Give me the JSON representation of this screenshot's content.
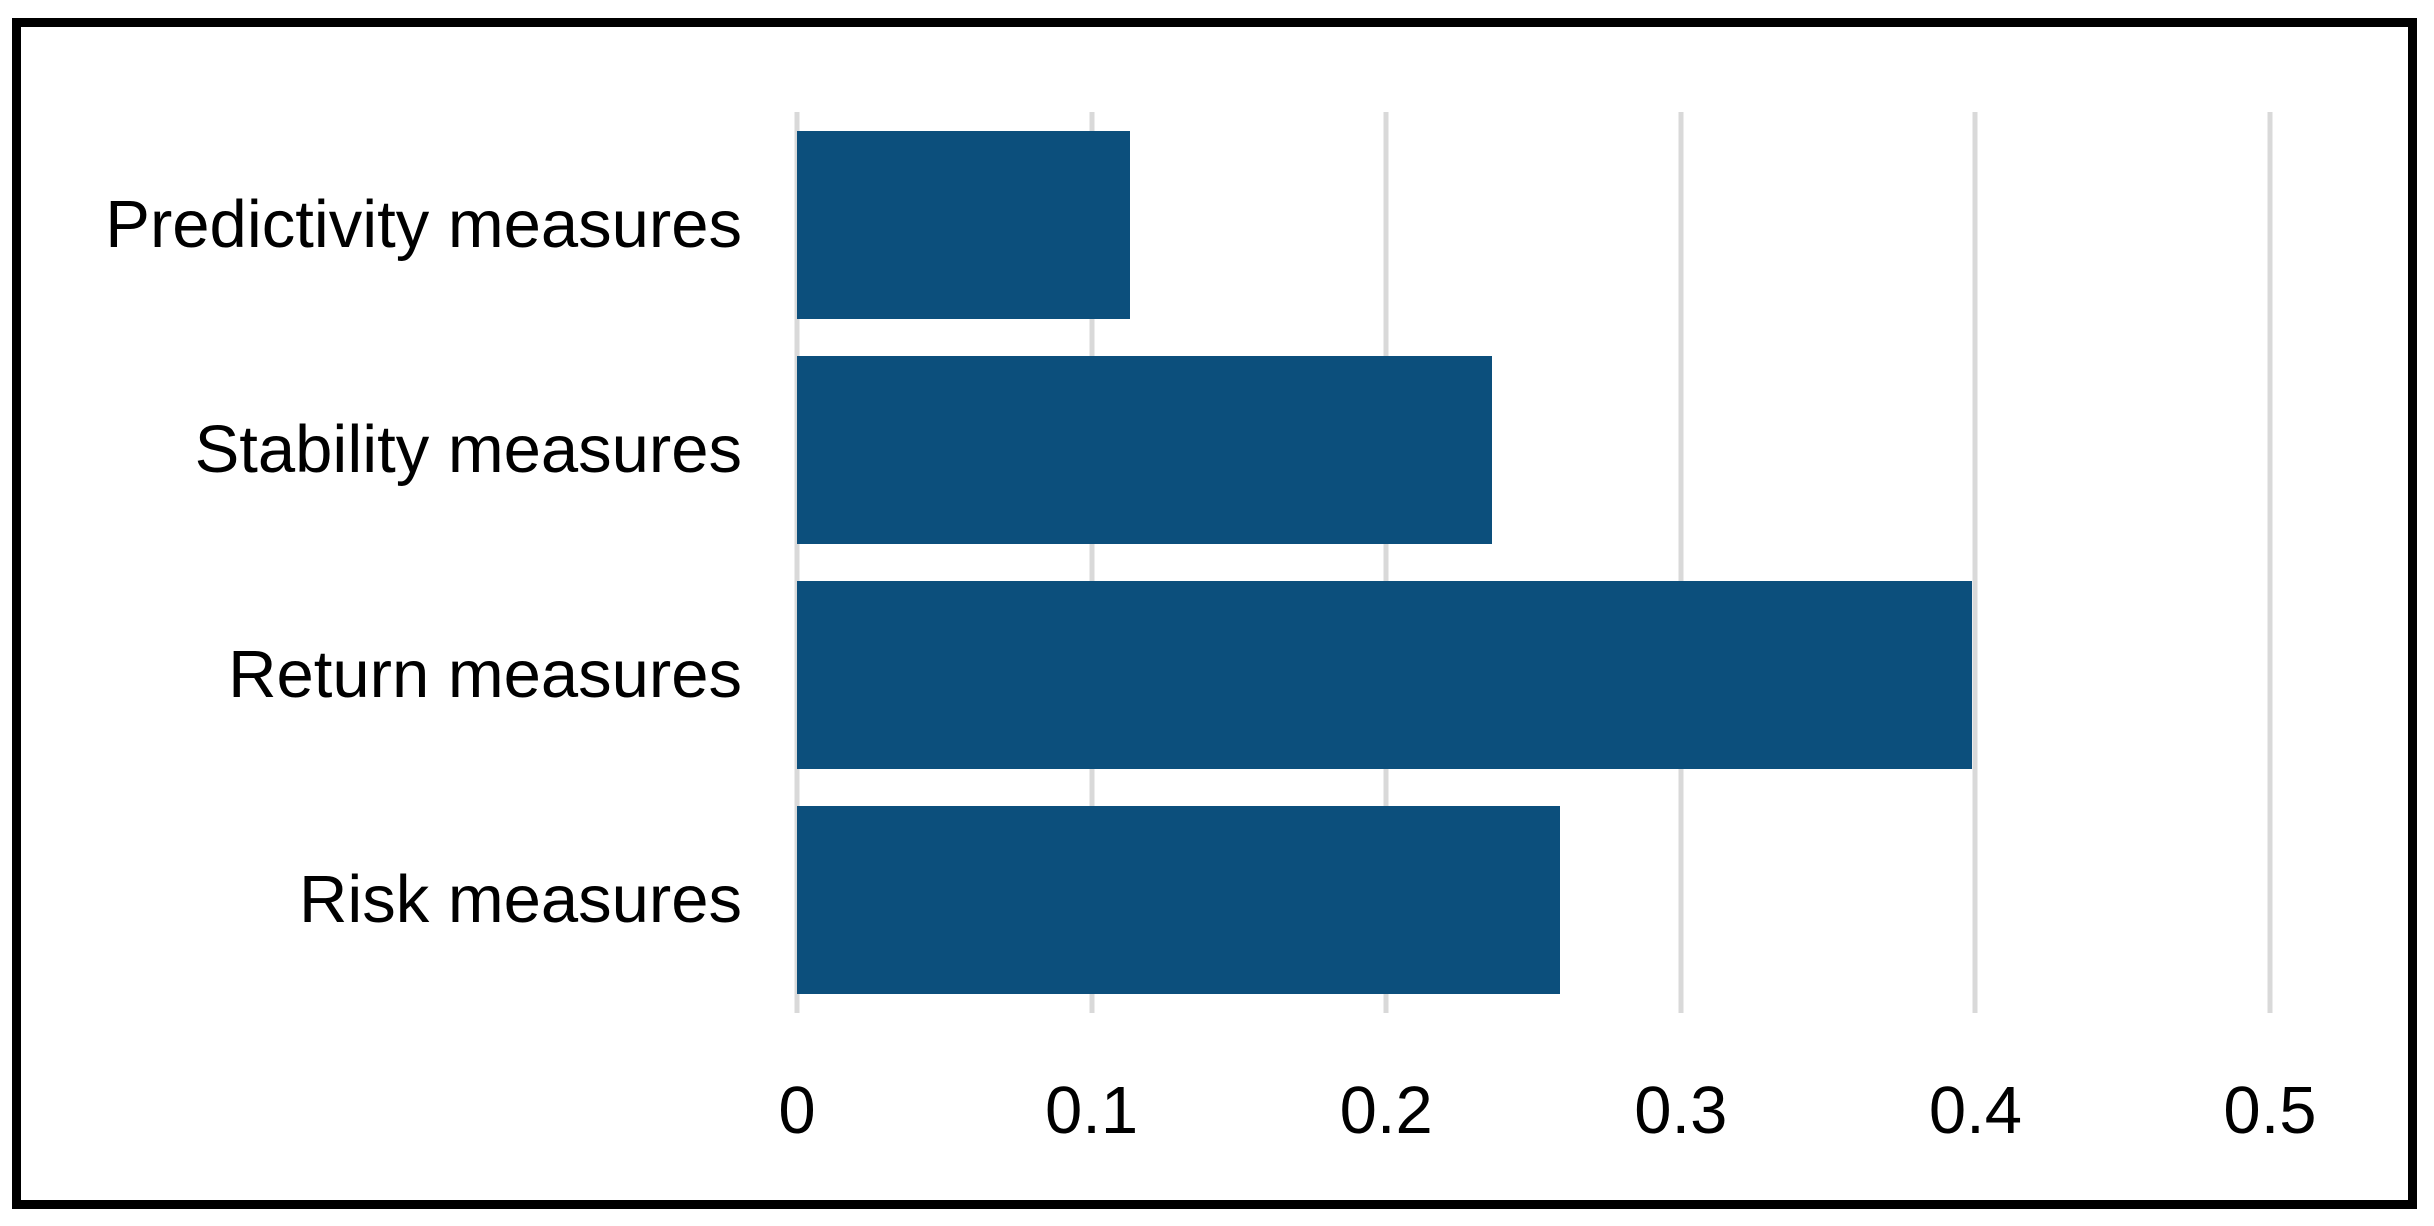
{
  "chart_data": {
    "type": "bar",
    "orientation": "horizontal",
    "title": "",
    "xlabel": "",
    "ylabel": "",
    "categories": [
      "Predictivity measures",
      "Stability measures",
      "Return measures",
      "Risk measures"
    ],
    "values": [
      0.113,
      0.236,
      0.399,
      0.259
    ],
    "xlim": [
      0,
      0.5
    ],
    "x_ticks": [
      0,
      0.1,
      0.2,
      0.3,
      0.4,
      0.5
    ],
    "x_tick_labels": [
      "0",
      "0.1",
      "0.2",
      "0.3",
      "0.4",
      "0.5"
    ],
    "grid": "vertical-gridlines-only",
    "legend": "none",
    "colors": {
      "bar": "#0C4F7C",
      "gridline": "#D9D9D9",
      "text": "#000000",
      "frame_border": "#000000",
      "background": "#FFFFFF"
    }
  }
}
